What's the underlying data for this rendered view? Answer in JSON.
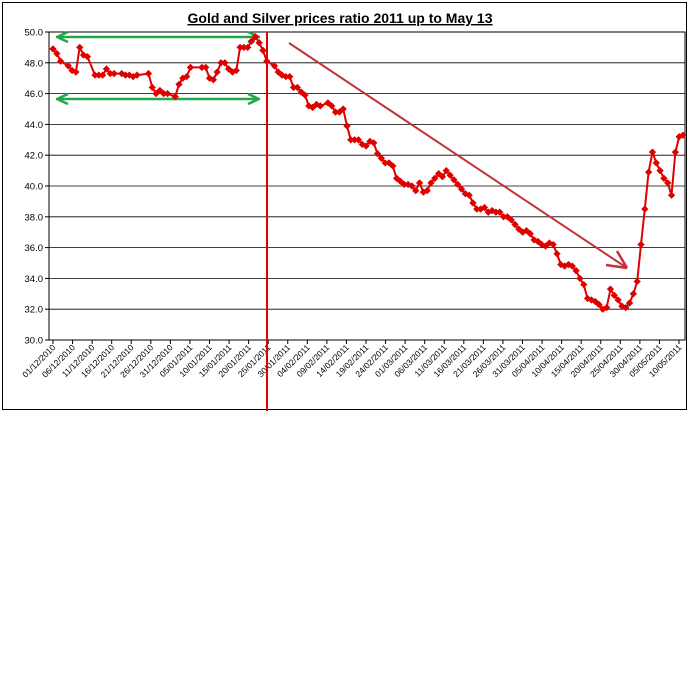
{
  "chart_data": {
    "type": "line",
    "title": "Gold and Silver prices ratio 2011 up to May 13",
    "xlabel": "",
    "ylabel": "",
    "ylim": [
      30.0,
      50.0
    ],
    "yticks": [
      "30.0",
      "32.0",
      "34.0",
      "36.0",
      "38.0",
      "40.0",
      "42.0",
      "44.0",
      "46.0",
      "48.0",
      "50.0"
    ],
    "grid": "horizontal",
    "x_tick_labels": [
      "01/12/2010",
      "06/12/2010",
      "11/12/2010",
      "16/12/2010",
      "21/12/2010",
      "26/12/2010",
      "31/12/2010",
      "05/01/2011",
      "10/01/2011",
      "15/01/2011",
      "20/01/2011",
      "25/01/2011",
      "30/01/2011",
      "04/02/2011",
      "09/02/2011",
      "14/02/2011",
      "19/02/2011",
      "24/02/2011",
      "01/03/2011",
      "06/03/2011",
      "11/03/2011",
      "16/03/2011",
      "21/03/2011",
      "26/03/2011",
      "31/03/2011",
      "05/04/2011",
      "10/04/2011",
      "15/04/2011",
      "20/04/2011",
      "25/04/2011",
      "30/04/2011",
      "05/05/2011",
      "10/05/2011"
    ],
    "series_color": "#e00000",
    "annotation_colors": {
      "green_arrows": "#22a84a",
      "red_line": "#e00000",
      "trend_arrow": "#c0323c"
    },
    "series": [
      {
        "x": [
          0,
          1,
          2,
          4,
          5,
          6,
          7,
          8,
          9,
          11,
          12,
          13,
          14,
          15,
          16,
          18,
          19,
          20,
          21,
          22,
          25,
          26,
          27,
          28,
          29,
          30,
          32,
          33,
          34,
          35,
          36,
          39,
          40,
          41,
          42,
          43,
          44,
          45,
          46,
          47,
          48,
          49,
          50,
          51,
          52,
          53,
          54,
          55,
          56,
          58,
          59,
          60,
          61,
          62,
          63,
          64,
          65,
          66,
          67,
          68,
          69,
          70,
          72,
          73,
          74,
          75,
          76,
          77,
          78,
          79,
          80,
          81,
          82,
          83,
          84,
          85,
          86,
          87,
          88,
          89,
          90,
          91,
          92,
          93,
          94,
          95,
          96,
          97,
          98,
          99,
          100,
          101,
          102,
          103,
          104,
          105,
          106,
          107,
          108,
          109,
          110,
          111,
          112,
          113,
          114,
          115,
          116,
          117,
          118,
          119,
          120,
          121,
          122,
          123,
          124,
          125,
          126,
          127,
          128,
          129,
          130,
          131,
          132,
          133,
          134,
          135,
          136,
          137,
          138,
          139,
          140,
          141,
          142,
          143,
          144,
          145,
          146,
          147,
          148,
          149,
          150,
          151,
          152,
          153,
          154,
          155,
          156,
          157,
          158,
          159,
          160,
          161,
          162,
          163,
          164,
          165
        ],
        "y": [
          48.9,
          48.6,
          48.1,
          47.8,
          47.5,
          47.4,
          49.0,
          48.5,
          48.4,
          47.2,
          47.2,
          47.2,
          47.6,
          47.3,
          47.3,
          47.3,
          47.2,
          47.2,
          47.1,
          47.2,
          47.3,
          46.4,
          46.0,
          46.2,
          46.0,
          46.0,
          45.8,
          46.6,
          47.0,
          47.1,
          47.7,
          47.7,
          47.7,
          47.0,
          46.9,
          47.4,
          48.0,
          48.0,
          47.6,
          47.4,
          47.5,
          49.0,
          49.0,
          49.0,
          49.4,
          49.7,
          49.3,
          48.8,
          48.1,
          47.8,
          47.4,
          47.2,
          47.1,
          47.1,
          46.4,
          46.4,
          46.1,
          45.9,
          45.2,
          45.1,
          45.3,
          45.2,
          45.4,
          45.2,
          44.8,
          44.8,
          45.0,
          43.9,
          43.0,
          43.0,
          43.0,
          42.7,
          42.6,
          42.9,
          42.8,
          42.1,
          41.8,
          41.5,
          41.5,
          41.3,
          40.5,
          40.3,
          40.1,
          40.1,
          40.0,
          39.7,
          40.2,
          39.6,
          39.7,
          40.2,
          40.5,
          40.8,
          40.6,
          41.0,
          40.7,
          40.4,
          40.1,
          39.8,
          39.5,
          39.4,
          38.9,
          38.5,
          38.5,
          38.6,
          38.3,
          38.4,
          38.3,
          38.3,
          38.0,
          38.0,
          37.8,
          37.5,
          37.2,
          37.0,
          37.1,
          36.9,
          36.5,
          36.4,
          36.2,
          36.1,
          36.3,
          36.2,
          35.6,
          34.9,
          34.8,
          34.9,
          34.8,
          34.5,
          34.0,
          33.6,
          32.7,
          32.6,
          32.5,
          32.3,
          32.0,
          32.1,
          33.3,
          32.9,
          32.6,
          32.2,
          32.1,
          32.4,
          33.0,
          33.8,
          36.2,
          38.5,
          40.9,
          42.2,
          41.5,
          41.0,
          40.5,
          40.2,
          39.4,
          42.2,
          43.2,
          43.3
        ]
      }
    ]
  }
}
